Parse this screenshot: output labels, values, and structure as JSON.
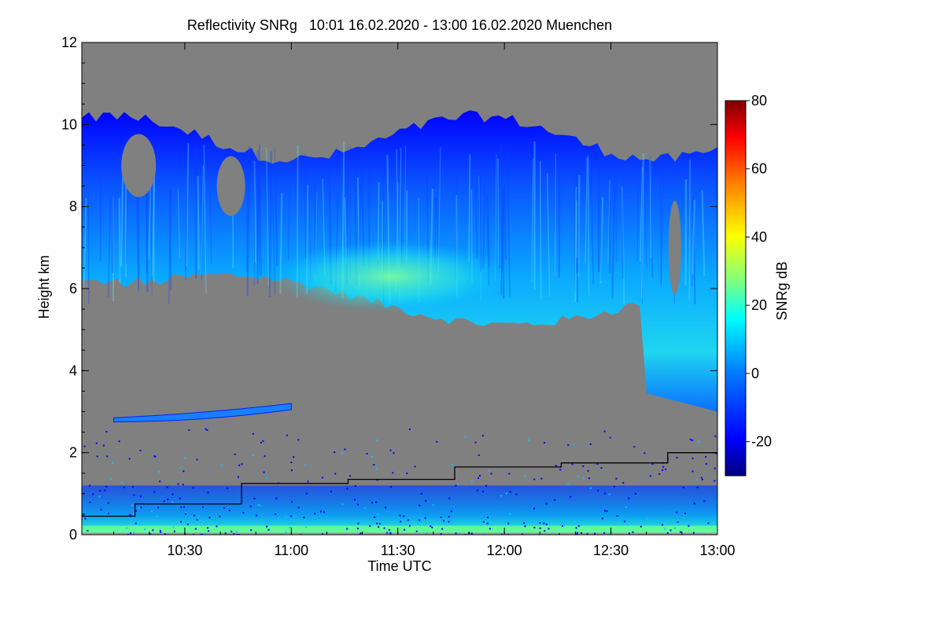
{
  "chart_data": {
    "type": "heatmap",
    "title": "Reflectivity SNRg   10:01 16.02.2020 - 13:00 16.02.2020 Muenchen",
    "xlabel": "Time UTC",
    "ylabel": "Height km",
    "colorbar_label": "SNRg dB",
    "x_range": [
      "10:01",
      "13:00"
    ],
    "x_ticks": [
      "10:30",
      "11:00",
      "11:30",
      "12:00",
      "12:30",
      "13:00"
    ],
    "ylim": [
      0,
      12
    ],
    "y_ticks": [
      0,
      2,
      4,
      6,
      8,
      10,
      12
    ],
    "colorbar_range": [
      -30,
      80
    ],
    "colorbar_ticks": [
      -20,
      0,
      20,
      40,
      60,
      80
    ],
    "colors": {
      "no_signal": "#808080",
      "colormap": [
        "#00007f",
        "#0000ff",
        "#007fff",
        "#00ffff",
        "#7fff7f",
        "#ffff00",
        "#ff7f00",
        "#ff0000",
        "#7f0000"
      ]
    },
    "features": {
      "upper_cloud": {
        "time_start": "10:01",
        "time_end": "13:00",
        "height_base_km": [
          5.0,
          6.2
        ],
        "height_top_km": [
          9.0,
          10.5
        ],
        "max_snr_db": 20
      },
      "thin_layer": {
        "time_start": "10:10",
        "time_end": "11:00",
        "height_km": [
          2.8,
          3.3
        ],
        "snr_db": 0
      },
      "boundary_layer": {
        "height_km": [
          0.0,
          1.5
        ]
      }
    },
    "series": [
      {
        "type": "step-line",
        "color": "#000000",
        "x": [
          "10:01",
          "10:16",
          "10:16",
          "10:46",
          "10:46",
          "11:16",
          "11:16",
          "11:46",
          "11:46",
          "12:16",
          "12:16",
          "12:46",
          "12:46",
          "13:00"
        ],
        "y": [
          0.45,
          0.45,
          0.75,
          0.75,
          1.25,
          1.25,
          1.35,
          1.35,
          1.65,
          1.65,
          1.75,
          1.75,
          2.0,
          2.0
        ]
      }
    ]
  }
}
